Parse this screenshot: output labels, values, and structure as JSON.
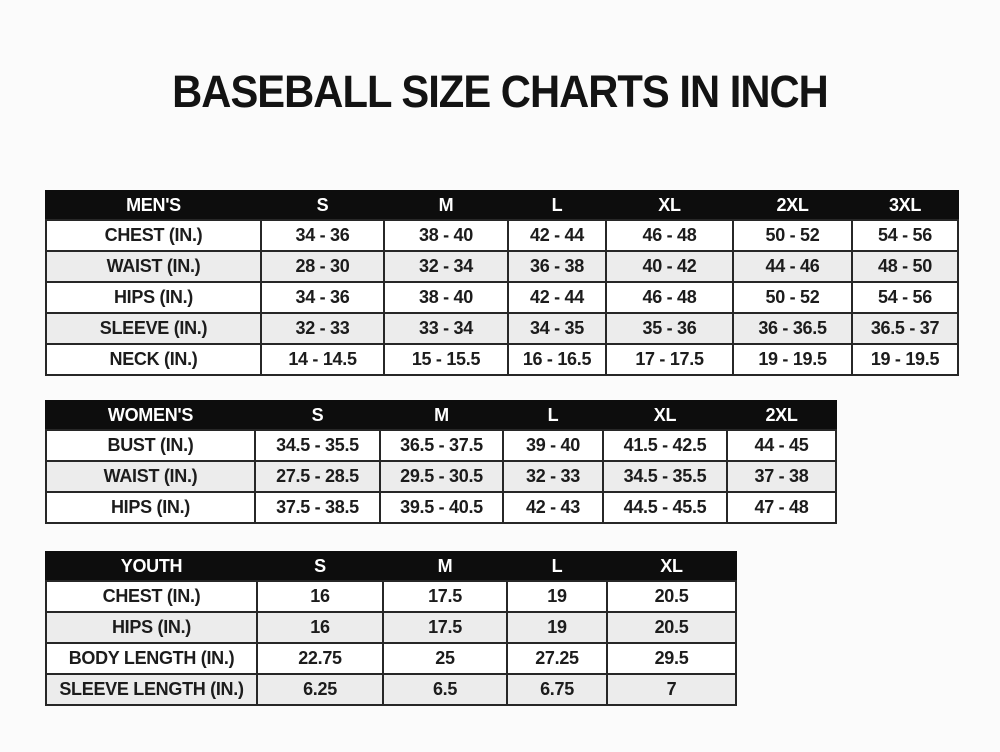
{
  "page": {
    "title": "BASEBALL SIZE CHARTS IN INCH"
  },
  "colors": {
    "header_bg": "#0d0d0d",
    "header_text": "#ffffff",
    "row_bg": "#ffffff",
    "row_alt_bg": "#ececec",
    "border": "#272727",
    "text": "#1c1c1c",
    "page_bg": "#fbfbfb"
  },
  "tables": [
    {
      "id": "mens",
      "name": "mens-size-table",
      "header": [
        "MEN'S",
        "S",
        "M",
        "L",
        "XL",
        "2XL",
        "3XL"
      ],
      "rows": [
        [
          "CHEST (IN.)",
          "34 - 36",
          "38 - 40",
          "42 - 44",
          "46 - 48",
          "50 - 52",
          "54 - 56"
        ],
        [
          "WAIST (IN.)",
          "28 - 30",
          "32 - 34",
          "36 - 38",
          "40 - 42",
          "44 - 46",
          "48 - 50"
        ],
        [
          "HIPS (IN.)",
          "34 - 36",
          "38 - 40",
          "42 - 44",
          "46 - 48",
          "50 - 52",
          "54 - 56"
        ],
        [
          "SLEEVE (IN.)",
          "32 - 33",
          "33 - 34",
          "34 - 35",
          "35 - 36",
          "36 - 36.5",
          "36.5 - 37"
        ],
        [
          "NECK (IN.)",
          "14 - 14.5",
          "15 - 15.5",
          "16 - 16.5",
          "17 - 17.5",
          "19 - 19.5",
          "19 - 19.5"
        ]
      ]
    },
    {
      "id": "womens",
      "name": "womens-size-table",
      "header": [
        "WOMEN'S",
        "S",
        "M",
        "L",
        "XL",
        "2XL"
      ],
      "rows": [
        [
          "BUST (IN.)",
          "34.5 - 35.5",
          "36.5 - 37.5",
          "39 - 40",
          "41.5 - 42.5",
          "44 - 45"
        ],
        [
          "WAIST (IN.)",
          "27.5 - 28.5",
          "29.5 - 30.5",
          "32 - 33",
          "34.5 - 35.5",
          "37 - 38"
        ],
        [
          "HIPS (IN.)",
          "37.5 - 38.5",
          "39.5 - 40.5",
          "42 - 43",
          "44.5 - 45.5",
          "47 - 48"
        ]
      ]
    },
    {
      "id": "youth",
      "name": "youth-size-table",
      "header": [
        "YOUTH",
        "S",
        "M",
        "L",
        "XL"
      ],
      "rows": [
        [
          "CHEST (IN.)",
          "16",
          "17.5",
          "19",
          "20.5"
        ],
        [
          "HIPS (IN.)",
          "16",
          "17.5",
          "19",
          "20.5"
        ],
        [
          "BODY LENGTH (IN.)",
          "22.75",
          "25",
          "27.25",
          "29.5"
        ],
        [
          "SLEEVE LENGTH (IN.)",
          "6.25",
          "6.5",
          "6.75",
          "7"
        ]
      ]
    }
  ]
}
